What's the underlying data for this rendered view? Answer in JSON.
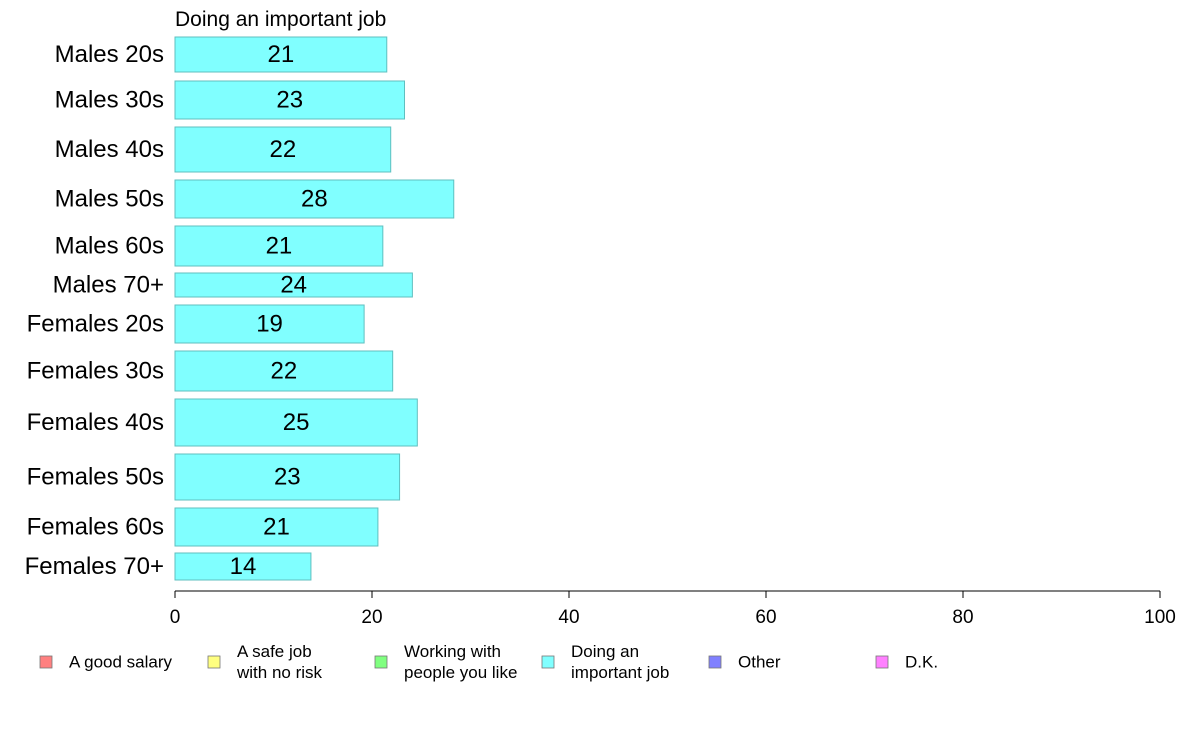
{
  "chart_data": {
    "type": "bar",
    "orientation": "horizontal",
    "title": "Doing an important job",
    "categories": [
      "Males 20s",
      "Males 30s",
      "Males 40s",
      "Males 50s",
      "Males 60s",
      "Males 70+",
      "Females 20s",
      "Females 30s",
      "Females 40s",
      "Females 50s",
      "Females 60s",
      "Females 70+"
    ],
    "values": [
      21.5,
      23.3,
      21.9,
      28.3,
      21.1,
      24.1,
      19.2,
      22.1,
      24.6,
      22.8,
      20.6,
      13.8
    ],
    "value_labels": [
      "21",
      "23",
      "22",
      "28",
      "21",
      "24",
      "19",
      "22",
      "25",
      "23",
      "21",
      "14"
    ],
    "bar_color": "#80ffff",
    "bar_border_color": "#5fbfbf",
    "xlim": [
      0,
      100
    ],
    "xticks": [
      "0",
      "20",
      "40",
      "60",
      "80",
      "100"
    ],
    "xlabel": "",
    "ylabel": "",
    "grid": false,
    "legend": {
      "placement": "bottom",
      "entries": [
        {
          "label": [
            "A good salary"
          ],
          "color": "#ff8080"
        },
        {
          "label": [
            "A safe job",
            "with no risk"
          ],
          "color": "#ffff80"
        },
        {
          "label": [
            "Working with",
            "people you like"
          ],
          "color": "#80ff80"
        },
        {
          "label": [
            "Doing an",
            "important job"
          ],
          "color": "#80ffff"
        },
        {
          "label": [
            "Other"
          ],
          "color": "#8080ff"
        },
        {
          "label": [
            "D.K."
          ],
          "color": "#ff80ff"
        }
      ]
    }
  }
}
